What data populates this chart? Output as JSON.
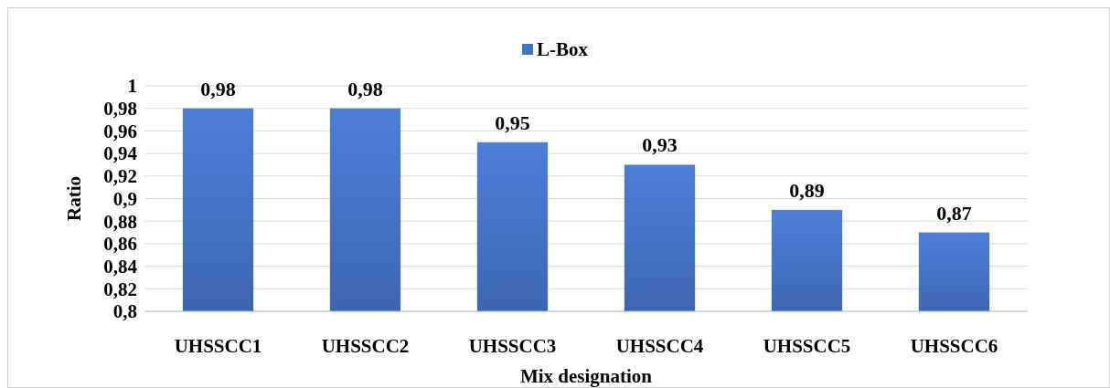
{
  "chart_data": {
    "type": "bar",
    "xlabel": "Mix designation",
    "ylabel": "Ratio",
    "categories": [
      "UHSSCC1",
      "UHSSCC2",
      "UHSSCC3",
      "UHSSCC4",
      "UHSSCC5",
      "UHSSCC6"
    ],
    "series": [
      {
        "name": "L-Box",
        "color": "#4472c4",
        "values": [
          0.98,
          0.98,
          0.95,
          0.93,
          0.89,
          0.87
        ],
        "value_labels": [
          "0,98",
          "0,98",
          "0,95",
          "0,93",
          "0,89",
          "0,87"
        ]
      }
    ],
    "ylim": [
      0.8,
      1
    ],
    "yticks": [
      {
        "value": 0.8,
        "label": "0,8"
      },
      {
        "value": 0.82,
        "label": "0,82"
      },
      {
        "value": 0.84,
        "label": "0,84"
      },
      {
        "value": 0.86,
        "label": "0,86"
      },
      {
        "value": 0.88,
        "label": "0,88"
      },
      {
        "value": 0.9,
        "label": "0,9"
      },
      {
        "value": 0.92,
        "label": "0,92"
      },
      {
        "value": 0.94,
        "label": "0,94"
      },
      {
        "value": 0.96,
        "label": "0,96"
      },
      {
        "value": 0.98,
        "label": "0,98"
      },
      {
        "value": 1,
        "label": "1"
      }
    ],
    "grid": "y",
    "legend": "top"
  }
}
